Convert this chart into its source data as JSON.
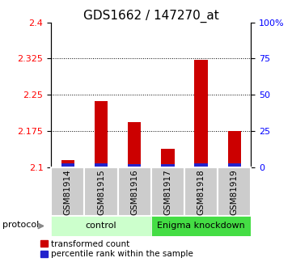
{
  "title": "GDS1662 / 147270_at",
  "samples": [
    "GSM81914",
    "GSM81915",
    "GSM81916",
    "GSM81917",
    "GSM81918",
    "GSM81919"
  ],
  "red_values": [
    2.115,
    2.237,
    2.193,
    2.138,
    2.322,
    2.175
  ],
  "blue_heights": [
    0.008,
    0.009,
    0.007,
    0.007,
    0.008,
    0.008
  ],
  "base_value": 2.1,
  "ylim_min": 2.1,
  "ylim_max": 2.4,
  "yticks_left": [
    2.1,
    2.175,
    2.25,
    2.325,
    2.4
  ],
  "yticks_left_labels": [
    "2.1",
    "2.175",
    "2.25",
    "2.325",
    "2.4"
  ],
  "yticks_right_vals": [
    2.1,
    2.175,
    2.25,
    2.325,
    2.4
  ],
  "yticks_right_labels": [
    "0",
    "25",
    "50",
    "75",
    "100%"
  ],
  "dotted_lines": [
    2.175,
    2.25,
    2.325
  ],
  "control_label": "control",
  "knockdown_label": "Enigma knockdown",
  "protocol_label": "protocol",
  "legend_red": "transformed count",
  "legend_blue": "percentile rank within the sample",
  "bar_width": 0.4,
  "red_color": "#cc0000",
  "blue_color": "#2222cc",
  "control_bg": "#ccffcc",
  "knockdown_bg": "#44dd44",
  "sample_bg": "#cccccc",
  "title_fontsize": 11,
  "tick_fontsize": 8,
  "legend_fontsize": 7.5
}
